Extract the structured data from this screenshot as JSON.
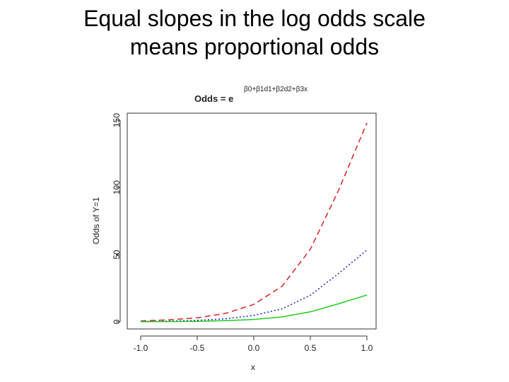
{
  "slide": {
    "title_line1": "Equal slopes in the log odds scale",
    "title_line2": "means proportional odds"
  },
  "chart_data": {
    "type": "line",
    "title_base": "Odds = e",
    "title_exponent": "β0+β1d1+β2d2+β3x",
    "xlabel": "x",
    "ylabel": "Odds of Y=1",
    "xlim": [
      -1.0,
      1.0
    ],
    "ylim": [
      0,
      150
    ],
    "x_ticks": [
      "-1.0",
      "-0.5",
      "0.0",
      "0.5",
      "1.0"
    ],
    "y_ticks": [
      "0",
      "50",
      "100",
      "150"
    ],
    "grid": false,
    "legend": "none",
    "x": [
      -1.0,
      -0.75,
      -0.5,
      -0.25,
      0.0,
      0.25,
      0.5,
      0.75,
      1.0
    ],
    "series": [
      {
        "color": "#dd2222",
        "dash": "dashed",
        "values": [
          0.7,
          1.5,
          3.0,
          6.3,
          13.0,
          26.5,
          54.0,
          98.0,
          148.0
        ]
      },
      {
        "color": "#2222cc",
        "dash": "dotted",
        "values": [
          0.3,
          0.6,
          1.1,
          2.3,
          4.8,
          9.7,
          19.8,
          36.0,
          53.5
        ]
      },
      {
        "color": "#22cc22",
        "dash": "solid",
        "values": [
          0.1,
          0.2,
          0.4,
          0.9,
          1.8,
          3.7,
          7.5,
          13.5,
          20.0
        ]
      }
    ]
  }
}
